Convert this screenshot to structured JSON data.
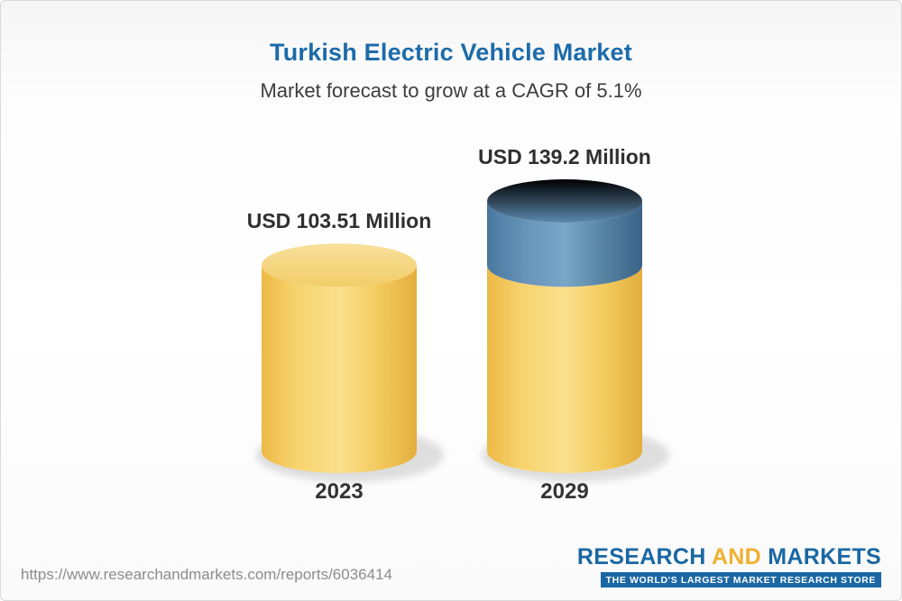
{
  "title": "Turkish Electric Vehicle Market",
  "subtitle": "Market forecast to grow at a CAGR of 5.1%",
  "chart_data": {
    "type": "bar",
    "variant": "3d-cylinder",
    "categories": [
      "2023",
      "2029"
    ],
    "values": [
      103.51,
      139.2
    ],
    "value_labels": [
      "USD 103.51 Million",
      "USD 139.2 Million"
    ],
    "title": "Turkish Electric Vehicle Market",
    "subtitle": "Market forecast to grow at a CAGR of 5.1%",
    "xlabel": "",
    "ylabel": "",
    "ylim": [
      0,
      150
    ],
    "grid": false,
    "legend": "none",
    "colors": {
      "base_segment": "#f2c85a",
      "growth_segment": "#4e7fa6",
      "title": "#1c6baa",
      "labels": "#2f2f2f"
    }
  },
  "footer": {
    "url": "https://www.researchandmarkets.com/reports/6036414",
    "logo": {
      "part1": "RESEARCH",
      "part2": "AND",
      "part3": "MARKETS",
      "tagline": "THE WORLD'S LARGEST MARKET RESEARCH STORE"
    }
  }
}
